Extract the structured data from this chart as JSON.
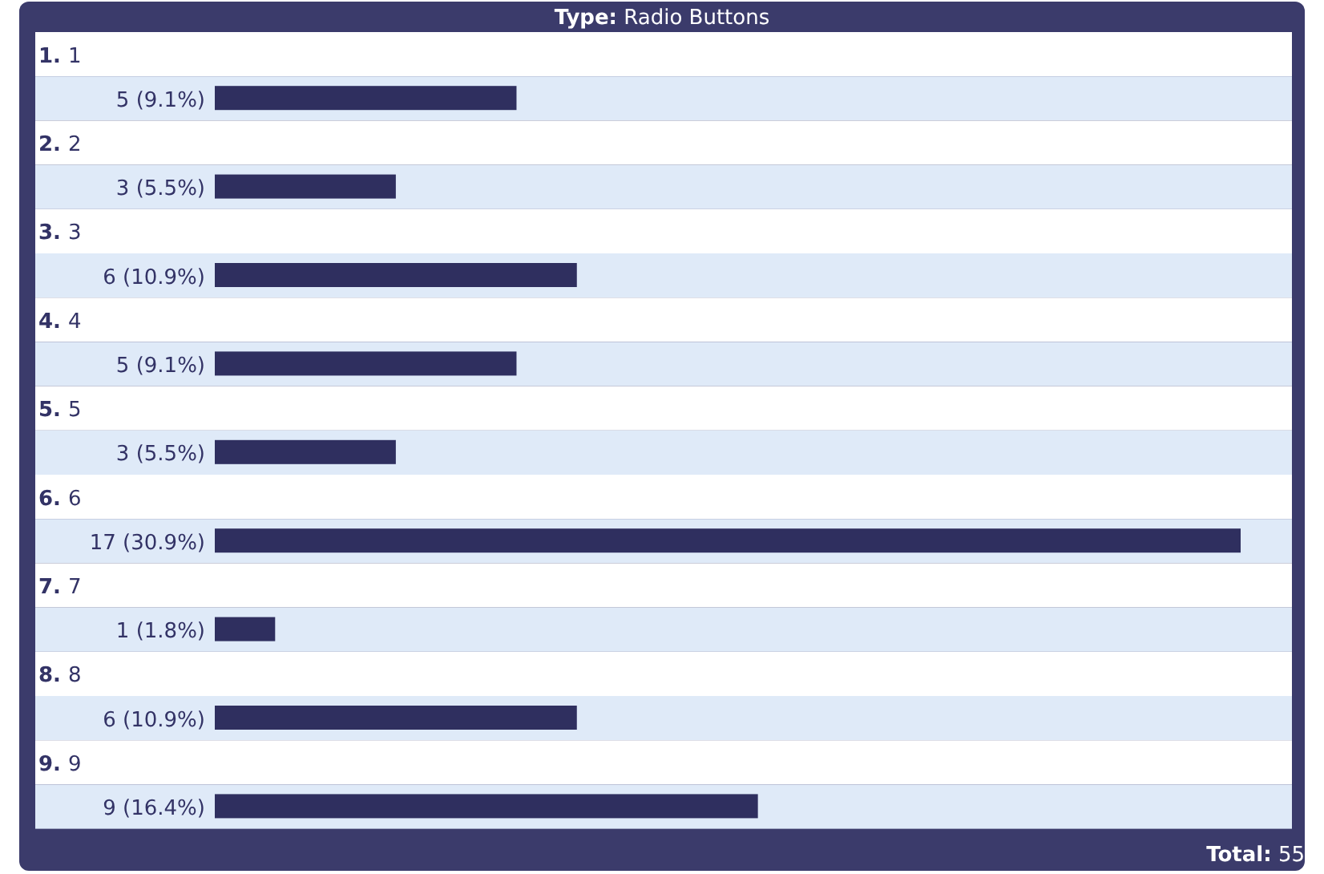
{
  "chart_data": {
    "type": "bar",
    "orientation": "horizontal",
    "title": "Type: Radio Buttons",
    "categories": [
      "1. 1",
      "2. 2",
      "3. 3",
      "4. 4",
      "5. 5",
      "6. 6",
      "7. 7",
      "8. 8",
      "9. 9"
    ],
    "values": [
      5,
      3,
      6,
      5,
      3,
      17,
      1,
      6,
      9
    ],
    "value_labels": [
      "5 (9.1%)",
      "3 (5.5%)",
      "6 (10.9%)",
      "5 (9.1%)",
      "3 (5.5%)",
      "17 (30.9%)",
      "1 (1.8%)",
      "6 (10.9%)",
      "9 (16.4%)"
    ],
    "color": "#2f2f5f",
    "annotations": [
      "Total: 55"
    ]
  }
}
